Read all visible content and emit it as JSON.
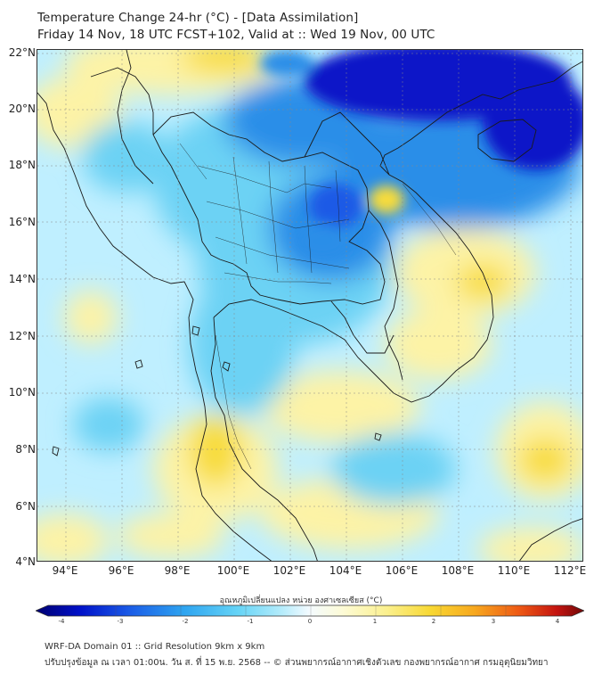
{
  "title": {
    "line1": "Temperature Change 24-hr (°C) - [Data Assimilation]",
    "line2": "Friday 14 Nov, 18 UTC FCST+102, Valid at :: Wed 19 Nov, 00 UTC"
  },
  "map": {
    "lat_labels": [
      "22°N",
      "20°N",
      "18°N",
      "16°N",
      "14°N",
      "12°N",
      "10°N",
      "8°N",
      "6°N",
      "4°N"
    ],
    "lon_labels": [
      "94°E",
      "96°E",
      "98°E",
      "100°E",
      "102°E",
      "104°E",
      "106°E",
      "108°E",
      "110°E",
      "112°E"
    ],
    "lat_range": [
      4,
      22.3
    ],
    "lon_range": [
      93,
      112.5
    ],
    "grid": true,
    "colors": {
      "ocean_base": "#bfefff",
      "cold_strong": "#0a14c8",
      "cold": "#2a8ee8",
      "cool": "#6cd2f4",
      "warm": "#fdf3a6",
      "warmer": "#f8dc3a",
      "outline": "#1a1a1a"
    }
  },
  "colorbar": {
    "title": "อุณหภูมิเปลี่ยนแปลง หน่วย องศาเซลเซียส (°C)",
    "ticks": [
      "-4",
      "-3",
      "-2",
      "-1",
      "0",
      "1",
      "2",
      "3",
      "4"
    ],
    "range": [
      -4,
      4
    ],
    "stops": [
      "#000070",
      "#0010c8",
      "#1a5ae6",
      "#2ea4f0",
      "#66d4f6",
      "#b6ecfb",
      "#f4fbff",
      "#fdfbd6",
      "#fbf08e",
      "#f8d833",
      "#f7a81e",
      "#ee5a14",
      "#c41410",
      "#700808"
    ]
  },
  "footer": {
    "line1": "WRF-DA Domain 01 :: Grid Resolution 9km x 9km",
    "line2": "ปรับปรุงข้อมูล ณ เวลา 01:00น. วัน ส. ที่ 15 พ.ย. 2568 -- © ส่วนพยากรณ์อากาศเชิงตัวเลข กองพยากรณ์อากาศ กรมอุตุนิยมวิทยา"
  }
}
